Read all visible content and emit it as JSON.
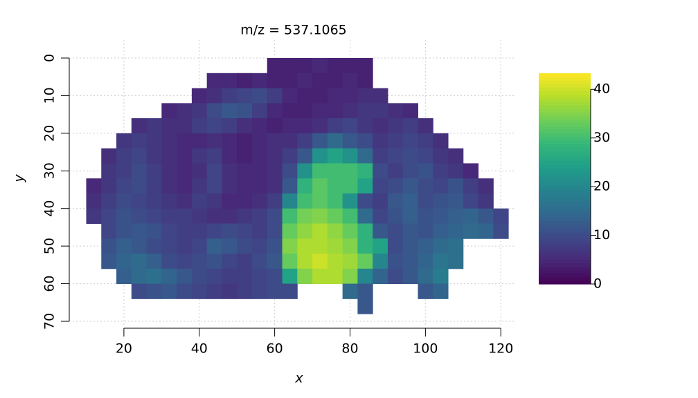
{
  "chart_data": {
    "type": "heatmap",
    "title": "m/z = 537.1065",
    "x_label": "x",
    "y_label": "y",
    "x": [
      12,
      16,
      20,
      24,
      28,
      32,
      36,
      40,
      44,
      48,
      52,
      56,
      60,
      64,
      68,
      72,
      76,
      80,
      84,
      88,
      92,
      96,
      100,
      104,
      108,
      112,
      116,
      120
    ],
    "y": [
      2,
      6,
      10,
      14,
      18,
      22,
      26,
      30,
      34,
      38,
      42,
      46,
      50,
      54,
      58,
      62,
      66
    ],
    "values": [
      [
        null,
        null,
        null,
        null,
        null,
        null,
        null,
        null,
        null,
        null,
        null,
        null,
        4,
        4,
        4,
        5,
        4,
        4,
        4,
        null,
        null,
        null,
        null,
        null,
        null,
        null,
        null,
        null
      ],
      [
        null,
        null,
        null,
        null,
        null,
        null,
        null,
        null,
        5,
        5,
        4,
        5,
        4,
        4,
        5,
        4,
        4,
        5,
        4,
        null,
        null,
        null,
        null,
        null,
        null,
        null,
        null,
        null
      ],
      [
        null,
        null,
        null,
        null,
        null,
        null,
        null,
        5,
        6,
        8,
        9,
        10,
        8,
        5,
        4,
        4,
        5,
        5,
        6,
        6,
        null,
        null,
        null,
        null,
        null,
        null,
        null,
        null
      ],
      [
        null,
        null,
        null,
        null,
        null,
        5,
        6,
        7,
        10,
        12,
        11,
        8,
        5,
        4,
        4,
        5,
        5,
        6,
        7,
        7,
        6,
        5,
        null,
        null,
        null,
        null,
        null,
        null
      ],
      [
        null,
        null,
        null,
        6,
        7,
        6,
        6,
        8,
        9,
        8,
        6,
        5,
        4,
        5,
        5,
        6,
        8,
        9,
        7,
        6,
        7,
        8,
        6,
        null,
        null,
        null,
        null,
        null
      ],
      [
        null,
        null,
        7,
        8,
        7,
        6,
        5,
        5,
        6,
        5,
        4,
        5,
        6,
        6,
        8,
        12,
        15,
        12,
        10,
        7,
        8,
        9,
        8,
        6,
        null,
        null,
        null,
        null
      ],
      [
        null,
        6,
        8,
        9,
        7,
        6,
        5,
        7,
        8,
        5,
        4,
        5,
        6,
        8,
        12,
        22,
        25,
        22,
        15,
        8,
        9,
        10,
        9,
        7,
        6,
        null,
        null,
        null
      ],
      [
        null,
        7,
        8,
        10,
        8,
        6,
        5,
        6,
        9,
        6,
        5,
        5,
        6,
        10,
        22,
        30,
        30,
        30,
        28,
        10,
        8,
        10,
        11,
        8,
        7,
        5,
        null,
        null
      ],
      [
        5,
        7,
        9,
        10,
        8,
        6,
        5,
        7,
        9,
        6,
        5,
        5,
        6,
        12,
        28,
        32,
        30,
        30,
        25,
        9,
        10,
        12,
        10,
        9,
        11,
        8,
        6,
        null
      ],
      [
        6,
        8,
        10,
        9,
        8,
        7,
        6,
        8,
        7,
        5,
        5,
        6,
        8,
        20,
        30,
        32,
        30,
        22,
        10,
        8,
        12,
        13,
        10,
        11,
        12,
        9,
        7,
        null
      ],
      [
        7,
        9,
        11,
        10,
        9,
        8,
        8,
        7,
        6,
        6,
        7,
        8,
        10,
        30,
        34,
        35,
        33,
        30,
        15,
        9,
        11,
        13,
        11,
        12,
        13,
        14,
        12,
        9
      ],
      [
        null,
        9,
        11,
        12,
        11,
        9,
        8,
        8,
        9,
        10,
        9,
        8,
        10,
        33,
        36,
        38,
        36,
        33,
        28,
        12,
        10,
        12,
        11,
        13,
        14,
        15,
        14,
        10
      ],
      [
        null,
        11,
        13,
        12,
        10,
        9,
        8,
        9,
        13,
        12,
        10,
        9,
        11,
        35,
        38,
        38,
        37,
        35,
        28,
        25,
        10,
        12,
        13,
        15,
        16,
        null,
        null,
        null
      ],
      [
        null,
        12,
        14,
        15,
        13,
        10,
        9,
        10,
        11,
        9,
        8,
        10,
        12,
        33,
        38,
        40,
        38,
        37,
        33,
        20,
        11,
        12,
        14,
        17,
        16,
        null,
        null,
        null
      ],
      [
        null,
        null,
        13,
        15,
        16,
        14,
        12,
        10,
        9,
        8,
        8,
        9,
        10,
        25,
        35,
        38,
        38,
        35,
        20,
        14,
        10,
        12,
        15,
        18,
        null,
        null,
        null,
        null
      ],
      [
        null,
        null,
        null,
        10,
        11,
        12,
        10,
        9,
        8,
        7,
        8,
        9,
        10,
        10,
        null,
        null,
        null,
        15,
        12,
        null,
        null,
        null,
        12,
        14,
        null,
        null,
        null,
        null
      ],
      [
        null,
        null,
        null,
        null,
        null,
        null,
        null,
        null,
        null,
        null,
        null,
        null,
        null,
        null,
        null,
        null,
        null,
        null,
        12,
        null,
        null,
        null,
        null,
        null,
        null,
        null,
        null,
        null
      ]
    ],
    "cell_size": 4,
    "xlim": [
      5.5,
      124
    ],
    "ylim": [
      0,
      70
    ],
    "y_reversed": true,
    "xticks": [
      20,
      40,
      60,
      80,
      100,
      120
    ],
    "yticks": [
      0,
      10,
      20,
      30,
      40,
      50,
      60,
      70
    ],
    "zlim": [
      0,
      43.3
    ],
    "zticks": [
      0,
      10,
      20,
      30,
      40
    ],
    "grid": true,
    "colorscale": [
      "#440154",
      "#482878",
      "#3e4989",
      "#31688e",
      "#26828e",
      "#1f9e89",
      "#35b779",
      "#6ece58",
      "#b5de2b",
      "#fde725"
    ]
  }
}
